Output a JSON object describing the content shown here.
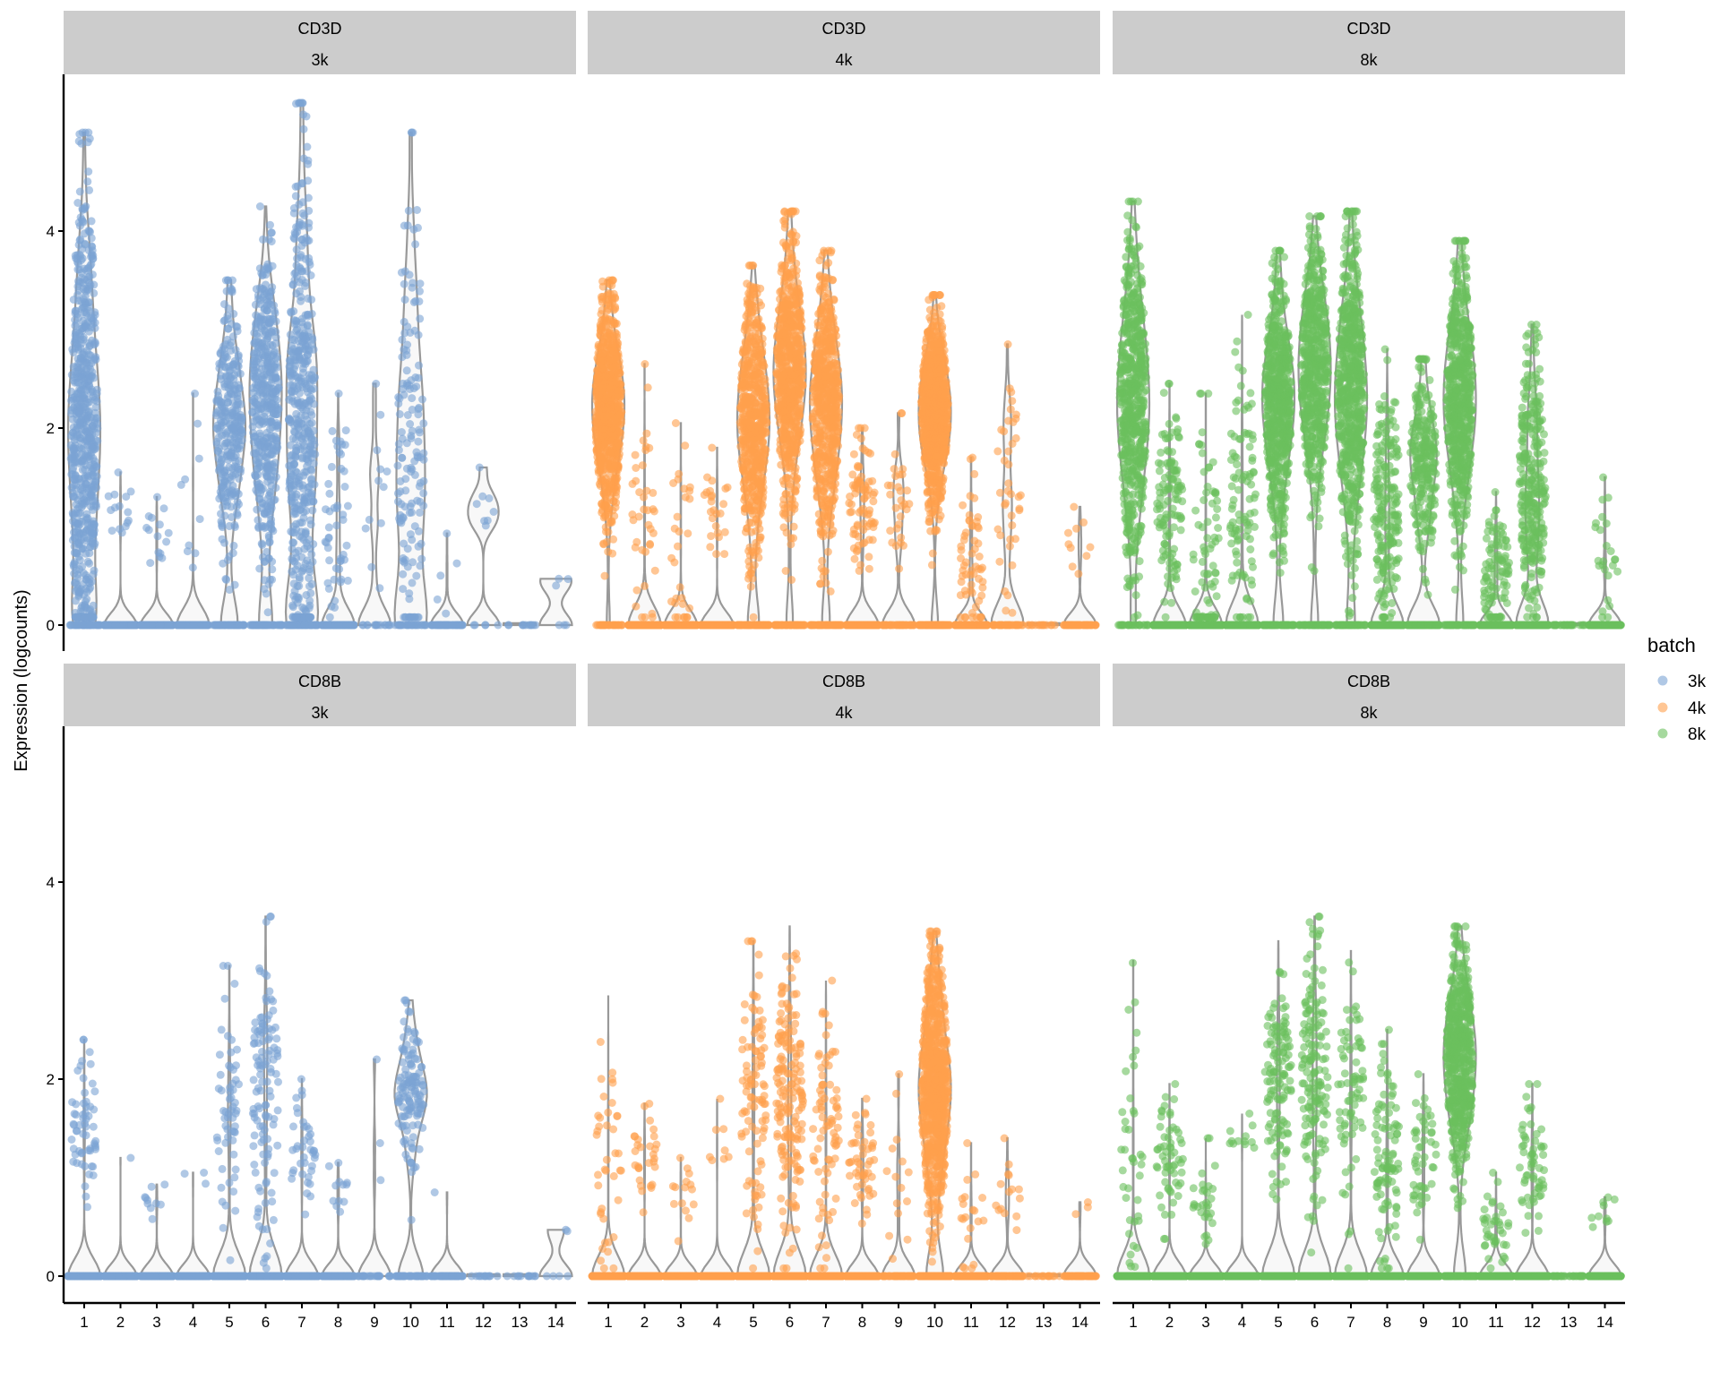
{
  "chart_data": {
    "type": "violin",
    "ylabel": "Expression (logcounts)",
    "categories": [
      "1",
      "2",
      "3",
      "4",
      "5",
      "6",
      "7",
      "8",
      "9",
      "10",
      "11",
      "12",
      "13",
      "14"
    ],
    "yticks": [
      0,
      2,
      4
    ],
    "ylim": [
      -0.3,
      5.5
    ],
    "grid": false,
    "legend": {
      "title": "batch",
      "placement": "right",
      "entries": [
        {
          "label": "3k",
          "color": "#7BA3D4"
        },
        {
          "label": "4k",
          "color": "#FFA04D"
        },
        {
          "label": "8k",
          "color": "#6BBF5E"
        }
      ]
    },
    "violin_fill": "#F8F8F8",
    "violin_stroke": "#999999",
    "cluster_fields": [
      "median_nonzero",
      "max",
      "n_nonzero_approx",
      "n_zero_approx"
    ],
    "panels": [
      {
        "gene": "CD3D",
        "batch": "3k",
        "clusters": [
          [
            1.9,
            5.0,
            700,
            40
          ],
          [
            1.2,
            1.55,
            15,
            300
          ],
          [
            0.8,
            1.3,
            15,
            250
          ],
          [
            1.1,
            2.35,
            10,
            250
          ],
          [
            2.0,
            3.5,
            300,
            60
          ],
          [
            2.3,
            4.25,
            450,
            60
          ],
          [
            2.0,
            5.3,
            500,
            70
          ],
          [
            1.0,
            2.35,
            50,
            120
          ],
          [
            1.4,
            2.45,
            12,
            15
          ],
          [
            1.8,
            5.0,
            150,
            30
          ],
          [
            0.45,
            0.93,
            5,
            60
          ],
          [
            1.2,
            1.6,
            8,
            5
          ],
          [
            0,
            0,
            0,
            12
          ],
          [
            0.45,
            0.47,
            3,
            3
          ]
        ]
      },
      {
        "gene": "CD3D",
        "batch": "4k",
        "clusters": [
          [
            2.2,
            3.5,
            1500,
            60
          ],
          [
            1.1,
            2.65,
            40,
            500
          ],
          [
            0.7,
            2.05,
            30,
            400
          ],
          [
            1.2,
            1.8,
            25,
            400
          ],
          [
            2.1,
            3.65,
            1200,
            150
          ],
          [
            2.6,
            4.2,
            1400,
            120
          ],
          [
            2.2,
            3.8,
            1200,
            100
          ],
          [
            1.2,
            2.0,
            80,
            250
          ],
          [
            1.3,
            2.15,
            30,
            40
          ],
          [
            2.2,
            3.35,
            900,
            80
          ],
          [
            0.5,
            1.7,
            60,
            200
          ],
          [
            1.4,
            2.85,
            40,
            40
          ],
          [
            0,
            0,
            0,
            15
          ],
          [
            0.8,
            1.2,
            10,
            60
          ]
        ]
      },
      {
        "gene": "CD3D",
        "batch": "8k",
        "clusters": [
          [
            2.3,
            4.3,
            3000,
            120
          ],
          [
            1.3,
            2.45,
            120,
            900
          ],
          [
            0.8,
            2.35,
            80,
            800
          ],
          [
            1.3,
            3.15,
            100,
            800
          ],
          [
            2.3,
            3.8,
            2500,
            300
          ],
          [
            2.6,
            4.15,
            2800,
            250
          ],
          [
            2.3,
            4.2,
            2500,
            200
          ],
          [
            1.2,
            2.8,
            200,
            500
          ],
          [
            1.6,
            2.7,
            250,
            120
          ],
          [
            2.3,
            3.9,
            1800,
            150
          ],
          [
            0.5,
            1.35,
            100,
            400
          ],
          [
            1.4,
            3.05,
            300,
            200
          ],
          [
            0,
            0,
            0,
            30
          ],
          [
            0.7,
            1.5,
            25,
            150
          ]
        ]
      },
      {
        "gene": "CD8B",
        "batch": "3k",
        "clusters": [
          [
            1.5,
            2.4,
            60,
            700
          ],
          [
            1.2,
            1.2,
            1,
            300
          ],
          [
            0.7,
            0.93,
            10,
            250
          ],
          [
            1.0,
            1.05,
            3,
            250
          ],
          [
            1.7,
            3.15,
            60,
            300
          ],
          [
            1.8,
            3.65,
            120,
            400
          ],
          [
            1.2,
            2.0,
            40,
            450
          ],
          [
            0.9,
            1.15,
            12,
            150
          ],
          [
            1.5,
            2.2,
            3,
            25
          ],
          [
            1.8,
            2.8,
            130,
            50
          ],
          [
            0.85,
            0.85,
            1,
            60
          ],
          [
            0,
            0,
            0,
            12
          ],
          [
            0,
            0,
            0,
            12
          ],
          [
            0.45,
            0.47,
            2,
            4
          ]
        ]
      },
      {
        "gene": "CD8B",
        "batch": "4k",
        "clusters": [
          [
            1.2,
            2.85,
            80,
            1400
          ],
          [
            1.2,
            1.75,
            30,
            500
          ],
          [
            0.8,
            1.2,
            15,
            400
          ],
          [
            1.3,
            1.8,
            8,
            400
          ],
          [
            1.8,
            3.4,
            200,
            1100
          ],
          [
            1.8,
            3.55,
            350,
            1100
          ],
          [
            1.5,
            3.0,
            80,
            1100
          ],
          [
            1.1,
            1.8,
            50,
            300
          ],
          [
            0.9,
            2.05,
            15,
            60
          ],
          [
            1.9,
            3.5,
            800,
            150
          ],
          [
            0.6,
            1.35,
            20,
            250
          ],
          [
            0.8,
            1.4,
            15,
            70
          ],
          [
            0,
            0,
            0,
            15
          ],
          [
            0.7,
            0.75,
            3,
            70
          ]
        ]
      },
      {
        "gene": "CD8B",
        "batch": "8k",
        "clusters": [
          [
            1.5,
            3.2,
            200,
            3000
          ],
          [
            1.2,
            1.95,
            60,
            1000
          ],
          [
            0.8,
            1.4,
            30,
            850
          ],
          [
            1.4,
            1.65,
            12,
            900
          ],
          [
            2.0,
            3.4,
            500,
            2300
          ],
          [
            2.0,
            3.65,
            800,
            2200
          ],
          [
            1.8,
            3.3,
            300,
            2400
          ],
          [
            1.2,
            2.5,
            100,
            600
          ],
          [
            1.2,
            2.05,
            50,
            300
          ],
          [
            2.2,
            3.55,
            1700,
            250
          ],
          [
            0.5,
            1.05,
            40,
            450
          ],
          [
            1.1,
            1.95,
            60,
            450
          ],
          [
            0,
            0,
            0,
            30
          ],
          [
            0.6,
            0.8,
            10,
            170
          ]
        ]
      }
    ]
  }
}
